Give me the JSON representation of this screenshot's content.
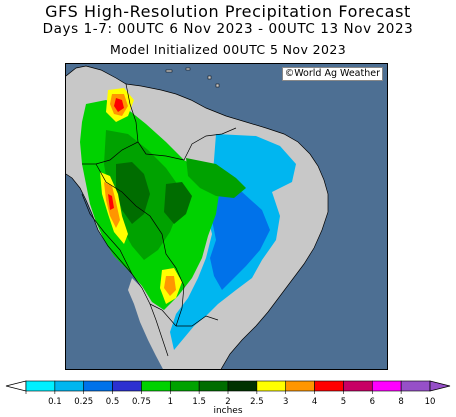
{
  "header": {
    "title": "GFS High-Resolution Precipitation Forecast",
    "period": "Days 1-7: 00UTC 6 Nov 2023 - 00UTC 13 Nov 2023",
    "init": "Model Initialized 00UTC 5 Nov 2023"
  },
  "map": {
    "credit": "©World Ag Weather",
    "ocean_color": "#4d6f93",
    "land_color": "#c8c8c8"
  },
  "legend": {
    "unit": "inches",
    "ticks": [
      "0.1",
      "0.25",
      "0.5",
      "0.75",
      "1",
      "1.5",
      "2",
      "2.5",
      "3",
      "4",
      "5",
      "6",
      "8",
      "10"
    ],
    "colors": [
      "#00f0ff",
      "#00b6f0",
      "#0072ea",
      "#2c30d0",
      "#00d200",
      "#00a200",
      "#006d00",
      "#003200",
      "#ffff00",
      "#ff9600",
      "#ff0000",
      "#c80064",
      "#ff00ff",
      "#9650c8"
    ]
  }
}
